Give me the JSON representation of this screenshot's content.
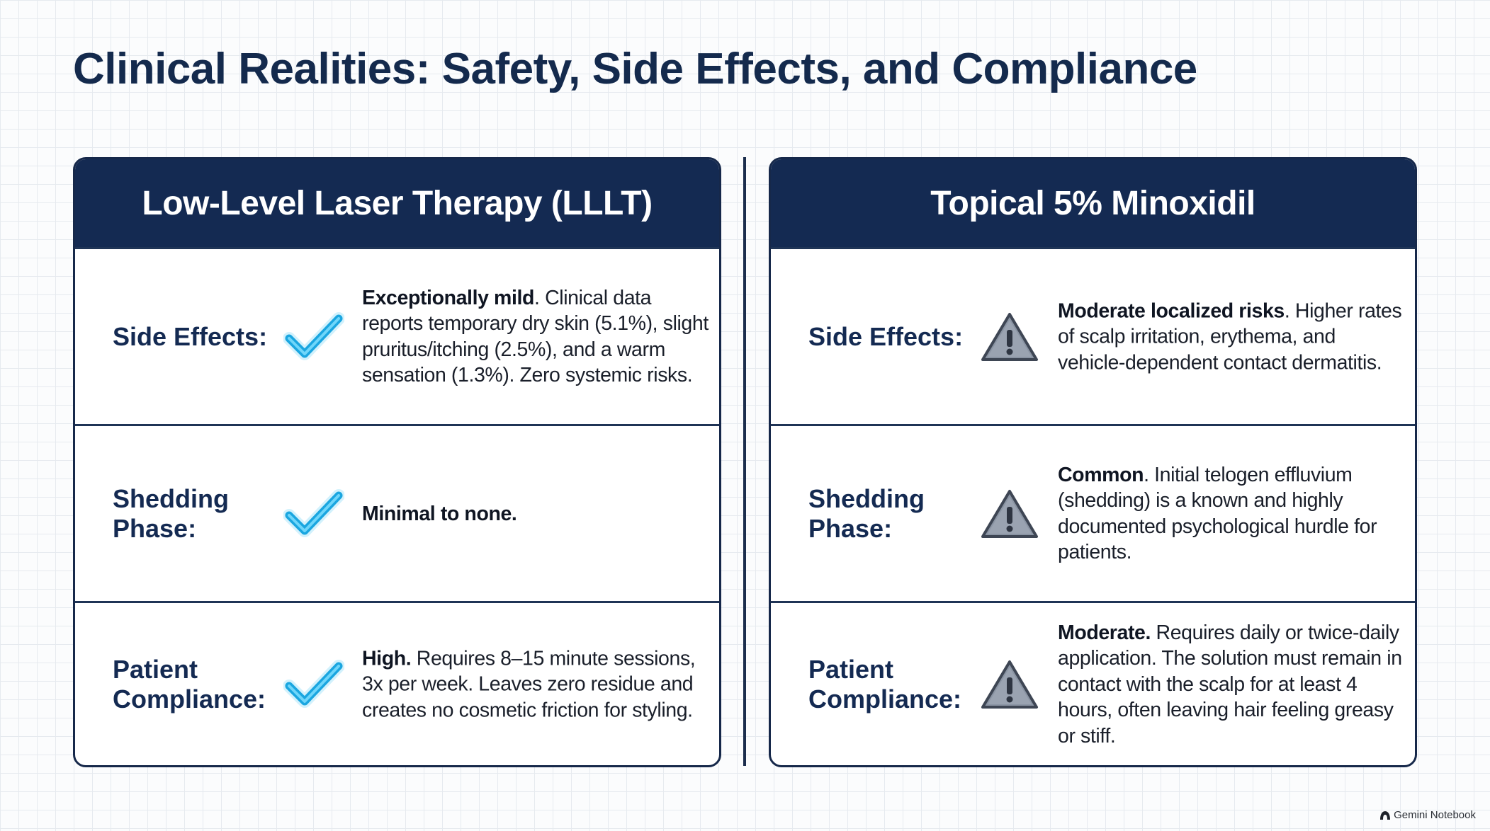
{
  "title": "Clinical Realities: Safety, Side Effects, and Compliance",
  "colors": {
    "navy": "#142a52",
    "check_cyan": "#1fb4ea",
    "warning_gray": "#8a94a3"
  },
  "left_panel": {
    "header": "Low-Level Laser Therapy (LLLT)",
    "icon": "check-icon",
    "rows": [
      {
        "label": "Side Effects:",
        "lead": "Exceptionally mild",
        "text": ". Clinical data reports temporary dry skin (5.1%), slight pruritus/itching (2.5%), and a warm sensation (1.3%). Zero systemic risks."
      },
      {
        "label": "Shedding Phase:",
        "lead": "Minimal to none.",
        "text": ""
      },
      {
        "label": "Patient Compliance:",
        "lead": "High.",
        "text": " Requires 8–15 minute sessions, 3x per week. Leaves zero residue and creates no cosmetic friction for styling."
      }
    ]
  },
  "right_panel": {
    "header": "Topical 5% Minoxidil",
    "icon": "warning-icon",
    "rows": [
      {
        "label": "Side Effects:",
        "lead": "Moderate localized risks",
        "text": ". Higher rates of scalp irritation, erythema, and vehicle-dependent contact dermatitis."
      },
      {
        "label": "Shedding Phase:",
        "lead": "Common",
        "text": ". Initial telogen effluvium (shedding) is a known and highly documented psychological hurdle for patients."
      },
      {
        "label": "Patient Compliance:",
        "lead": "Moderate.",
        "text": " Requires daily or twice-daily application. The solution must remain in contact with the scalp for at least 4 hours, often leaving hair feeling greasy or stiff."
      }
    ]
  },
  "watermark": "Gemini Notebook"
}
